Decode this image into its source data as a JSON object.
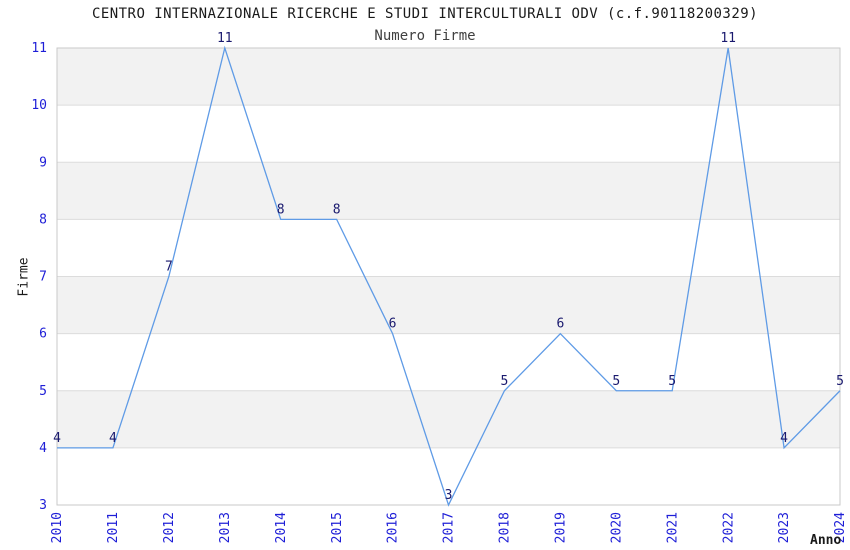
{
  "chart_data": {
    "type": "line",
    "title": "CENTRO INTERNAZIONALE RICERCHE E STUDI INTERCULTURALI ODV (c.f.90118200329)",
    "subtitle": "Numero Firme",
    "xlabel": "Anno",
    "ylabel": "Firme",
    "categories": [
      "2010",
      "2011",
      "2012",
      "2013",
      "2014",
      "2015",
      "2016",
      "2017",
      "2018",
      "2019",
      "2020",
      "2021",
      "2022",
      "2023",
      "2024"
    ],
    "values": [
      4,
      4,
      7,
      11,
      8,
      8,
      6,
      3,
      5,
      6,
      5,
      5,
      11,
      4,
      5
    ],
    "ylim": [
      3,
      11
    ],
    "yticks": [
      3,
      4,
      5,
      6,
      7,
      8,
      9,
      10,
      11
    ],
    "grid": "alternating-horizontal-bands",
    "legend_position": "none",
    "colors": {
      "line": "#5f9be6",
      "tick_label": "#1e1ed7",
      "data_label": "#19196e",
      "band_fill": "#f2f2f2",
      "gridline": "#dcdcdc",
      "plot_border": "#c9c9c9",
      "background": "#ffffff"
    }
  }
}
